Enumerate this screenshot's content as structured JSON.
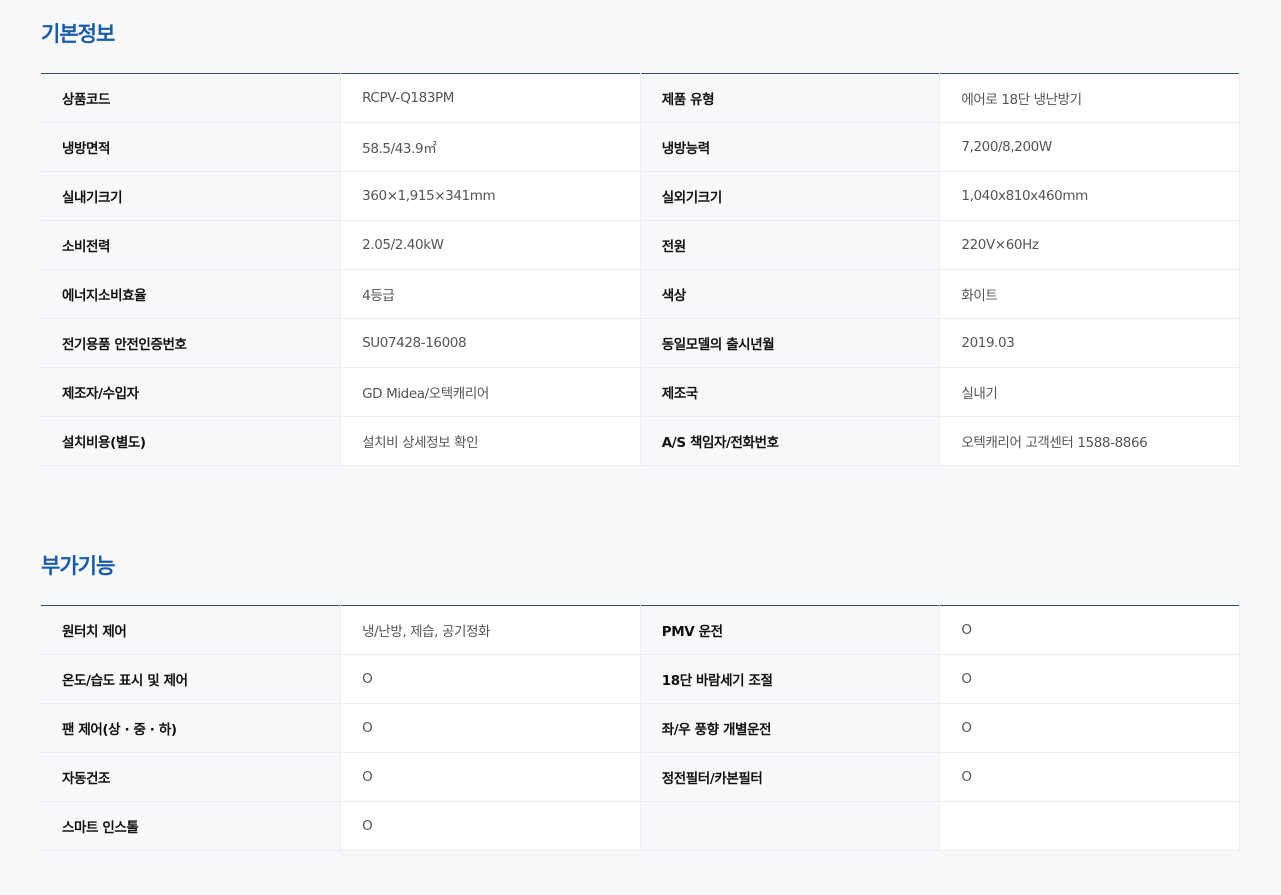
{
  "basic": {
    "title": "기본정보",
    "rows": [
      {
        "l1": "상품코드",
        "v1": "RCPV-Q183PM",
        "l2": "제품 유형",
        "v2": "에어로 18단 냉난방기"
      },
      {
        "l1": "냉방면적",
        "v1": "58.5/43.9㎡",
        "l2": "냉방능력",
        "v2": "7,200/8,200W"
      },
      {
        "l1": "실내기크기",
        "v1": "360×1,915×341mm",
        "l2": "실외기크기",
        "v2": "1,040x810x460mm"
      },
      {
        "l1": "소비전력",
        "v1": "2.05/2.40kW",
        "l2": "전원",
        "v2": "220V×60Hz"
      },
      {
        "l1": "에너지소비효율",
        "v1": "4등급",
        "l2": "색상",
        "v2": "화이트"
      },
      {
        "l1": "전기용품 안전인증번호",
        "v1": "SU07428-16008",
        "l2": "동일모델의 출시년월",
        "v2": "2019.03"
      },
      {
        "l1": "제조자/수입자",
        "v1": "GD Midea/오텍캐리어",
        "l2": "제조국",
        "v2": "실내기"
      },
      {
        "l1": "설치비용(별도)",
        "v1": "설치비 상세정보 확인",
        "l2": "A/S 책임자/전화번호",
        "v2": "오텍캐리어 고객센터 1588-8866"
      }
    ]
  },
  "extra": {
    "title": "부가기능",
    "rows": [
      {
        "l1": "원터치 제어",
        "v1": "냉/난방, 제습, 공기정화",
        "l2": "PMV 운전",
        "v2": "O"
      },
      {
        "l1": "온도/습도 표시 및 제어",
        "v1": "O",
        "l2": "18단 바람세기 조절",
        "v2": "O"
      },
      {
        "l1": "팬 제어(상 · 중 · 하)",
        "v1": "O",
        "l2": "좌/우 풍향 개별운전",
        "v2": "O"
      },
      {
        "l1": "자동건조",
        "v1": "O",
        "l2": "정전필터/카본필터",
        "v2": "O"
      },
      {
        "l1": "스마트 인스톨",
        "v1": "O",
        "l2": "",
        "v2": ""
      }
    ]
  }
}
